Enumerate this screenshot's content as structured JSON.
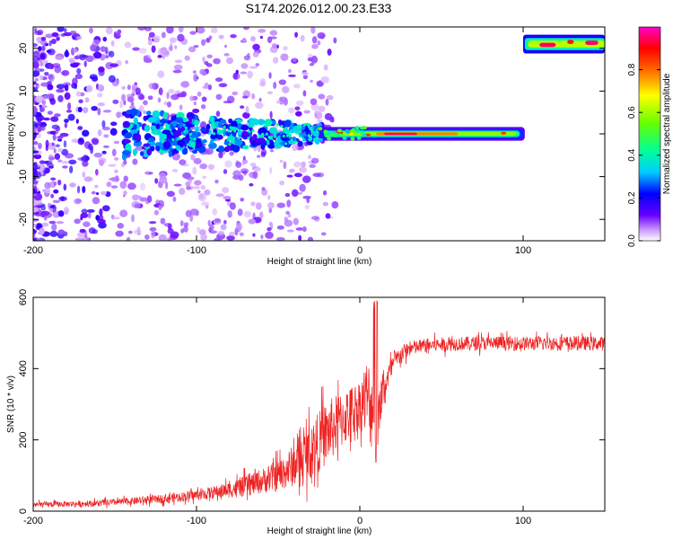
{
  "title": "S174.2026.012.00.23.E33",
  "chart_data": [
    {
      "type": "heatmap",
      "name": "spectrogram",
      "xlabel": "Height of straight line (km)",
      "ylabel": "Frequency (Hz)",
      "xlim": [
        -200,
        150
      ],
      "ylim": [
        -25,
        25
      ],
      "xticks": [
        -200,
        -100,
        0,
        100
      ],
      "yticks": [
        -20,
        -10,
        0,
        10,
        20
      ],
      "colorbar": {
        "label": "Normalized spectral amplitude",
        "range": [
          0,
          1
        ],
        "ticks": [
          "0.0",
          "0.2",
          "0.4",
          "0.6",
          "0.8"
        ],
        "tick_values": [
          0.0,
          0.2,
          0.4,
          0.6,
          0.8
        ],
        "colormap": [
          "#ffffff",
          "#6600ff",
          "#0000ff",
          "#00ffff",
          "#00ff00",
          "#ffff00",
          "#ff0000",
          "#ff00ff"
        ]
      },
      "features": [
        {
          "desc": "scattered low-amplitude noise",
          "x_range": [
            -200,
            -20
          ],
          "f_range": [
            -25,
            25
          ],
          "amplitude": 0.1
        },
        {
          "desc": "broad blue band",
          "x_range": [
            -145,
            -25
          ],
          "f_range": [
            -6,
            6
          ],
          "amplitude": 0.3
        },
        {
          "desc": "narrow tone at 0 Hz",
          "x_range": [
            -25,
            100
          ],
          "frequency": 0,
          "amplitude": 0.7
        },
        {
          "desc": "peak",
          "x_range": [
            15,
            50
          ],
          "frequency": 0,
          "amplitude": 0.95
        },
        {
          "desc": "tone near 21 Hz",
          "x_range": [
            100,
            150
          ],
          "frequency": 21,
          "amplitude": 0.8
        }
      ]
    },
    {
      "type": "line",
      "name": "snr",
      "xlabel": "Height of straight line (km)",
      "ylabel": "SNR (10 * v/v)",
      "xlim": [
        -200,
        150
      ],
      "ylim": [
        0,
        600
      ],
      "xticks": [
        -200,
        -100,
        0,
        100
      ],
      "yticks": [
        0,
        200,
        400,
        600
      ],
      "color": "#ee2222",
      "envelope": {
        "x": [
          -200,
          -180,
          -160,
          -140,
          -120,
          -100,
          -90,
          -80,
          -70,
          -60,
          -50,
          -40,
          -30,
          -20,
          -10,
          0,
          5,
          8,
          10,
          12,
          15,
          20,
          25,
          30,
          40,
          60,
          80,
          100,
          120,
          150
        ],
        "mean": [
          18,
          20,
          22,
          28,
          35,
          45,
          52,
          60,
          70,
          85,
          100,
          130,
          170,
          220,
          260,
          300,
          320,
          250,
          180,
          290,
          350,
          410,
          440,
          455,
          465,
          470,
          472,
          470,
          472,
          470
        ],
        "noise": [
          8,
          8,
          9,
          10,
          12,
          15,
          18,
          22,
          30,
          35,
          45,
          60,
          80,
          90,
          80,
          70,
          120,
          90,
          70,
          60,
          40,
          30,
          25,
          22,
          20,
          20,
          20,
          20,
          20,
          20
        ]
      }
    }
  ]
}
